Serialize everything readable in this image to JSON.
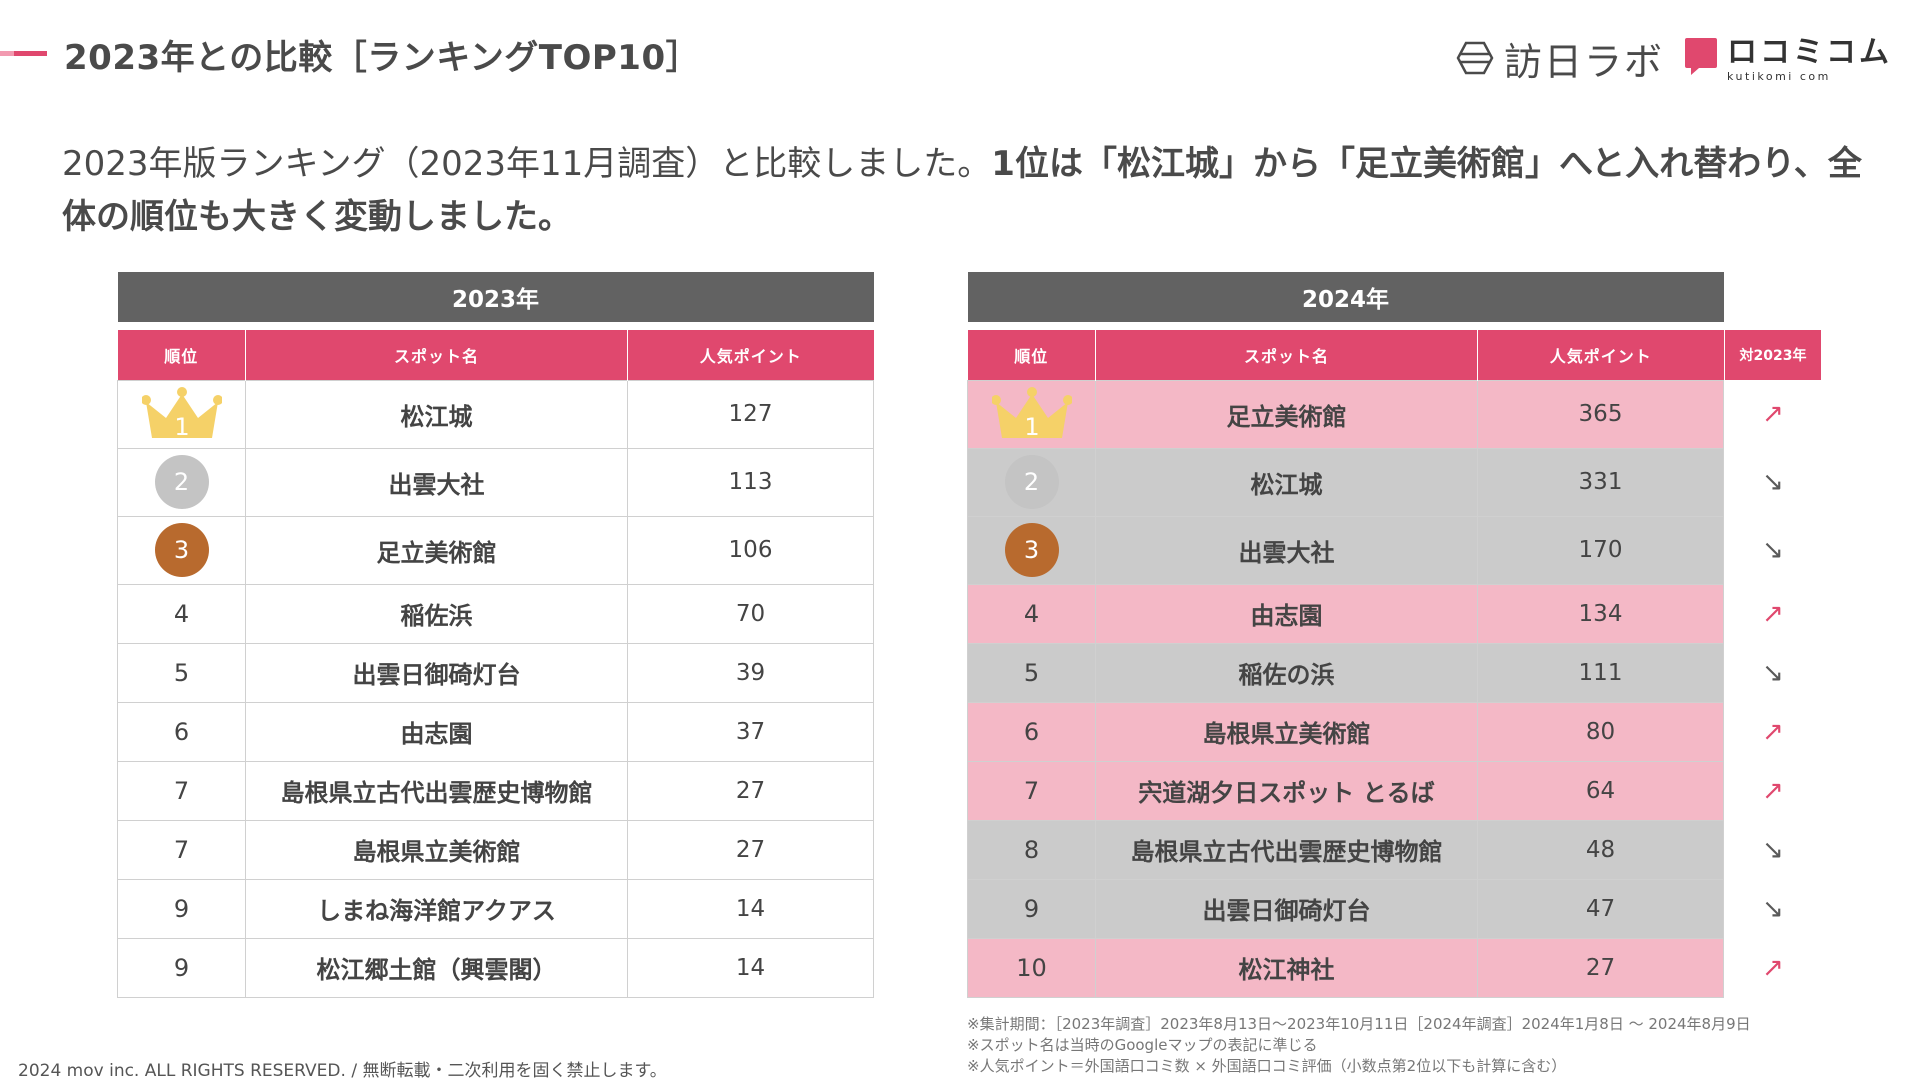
{
  "page": {
    "title": "2023年との比較［ランキングTOP10］",
    "intro_normal": "2023年版ランキング（2023年11月調査）と比較しました。",
    "intro_bold": "1位は「松江城」から「足立美術館」へと入れ替わり、全体の順位も大きく変動しました。",
    "copyright": "2024 mov inc. ALL RIGHTS RESERVED. / 無断転載・二次利用を固く禁止します。"
  },
  "logos": {
    "houjin_lab": "訪日ラボ",
    "kuchikomi_main": "ロコミコム",
    "kuchikomi_sub": "kutikomi com"
  },
  "colors": {
    "accent": "#e0486e",
    "table_header": "#626262",
    "row_up": "#f4b8c6",
    "row_down": "#cbcbcb",
    "gold": "#f5d168",
    "silver": "#c4c4c4",
    "bronze": "#b86a2e"
  },
  "columns": {
    "rank": "順位",
    "spot": "スポット名",
    "points": "人気ポイント",
    "vs": "対2023年"
  },
  "table_2023": {
    "year_label": "2023年",
    "rows": [
      {
        "rank": "1",
        "spot": "松江城",
        "points": "127"
      },
      {
        "rank": "2",
        "spot": "出雲大社",
        "points": "113"
      },
      {
        "rank": "3",
        "spot": "足立美術館",
        "points": "106"
      },
      {
        "rank": "4",
        "spot": "稲佐浜",
        "points": "70"
      },
      {
        "rank": "5",
        "spot": "出雲日御碕灯台",
        "points": "39"
      },
      {
        "rank": "6",
        "spot": "由志園",
        "points": "37"
      },
      {
        "rank": "7",
        "spot": "島根県立古代出雲歴史博物館",
        "points": "27"
      },
      {
        "rank": "7",
        "spot": "島根県立美術館",
        "points": "27"
      },
      {
        "rank": "9",
        "spot": "しまね海洋館アクアス",
        "points": "14"
      },
      {
        "rank": "9",
        "spot": "松江郷土館（興雲閣）",
        "points": "14"
      }
    ]
  },
  "table_2024": {
    "year_label": "2024年",
    "rows": [
      {
        "rank": "1",
        "spot": "足立美術館",
        "points": "365",
        "trend": "up",
        "arrow": "↗"
      },
      {
        "rank": "2",
        "spot": "松江城",
        "points": "331",
        "trend": "down",
        "arrow": "↘"
      },
      {
        "rank": "3",
        "spot": "出雲大社",
        "points": "170",
        "trend": "down",
        "arrow": "↘"
      },
      {
        "rank": "4",
        "spot": "由志園",
        "points": "134",
        "trend": "up",
        "arrow": "↗"
      },
      {
        "rank": "5",
        "spot": "稲佐の浜",
        "points": "111",
        "trend": "down",
        "arrow": "↘"
      },
      {
        "rank": "6",
        "spot": "島根県立美術館",
        "points": "80",
        "trend": "up",
        "arrow": "↗"
      },
      {
        "rank": "7",
        "spot": "宍道湖夕日スポット とるば",
        "points": "64",
        "trend": "up",
        "arrow": "↗"
      },
      {
        "rank": "8",
        "spot": "島根県立古代出雲歴史博物館",
        "points": "48",
        "trend": "down",
        "arrow": "↘"
      },
      {
        "rank": "9",
        "spot": "出雲日御碕灯台",
        "points": "47",
        "trend": "down",
        "arrow": "↘"
      },
      {
        "rank": "10",
        "spot": "松江神社",
        "points": "27",
        "trend": "up",
        "arrow": "↗"
      }
    ]
  },
  "notes": [
    "※集計期間：［2023年調査］2023年8月13日〜2023年10月11日［2024年調査］2024年1月8日 〜 2024年8月9日",
    "※スポット名は当時のGoogleマップの表記に準じる",
    "※人気ポイント＝外国語口コミ数 × 外国語口コミ評価（小数点第2位以下も計算に含む）"
  ]
}
